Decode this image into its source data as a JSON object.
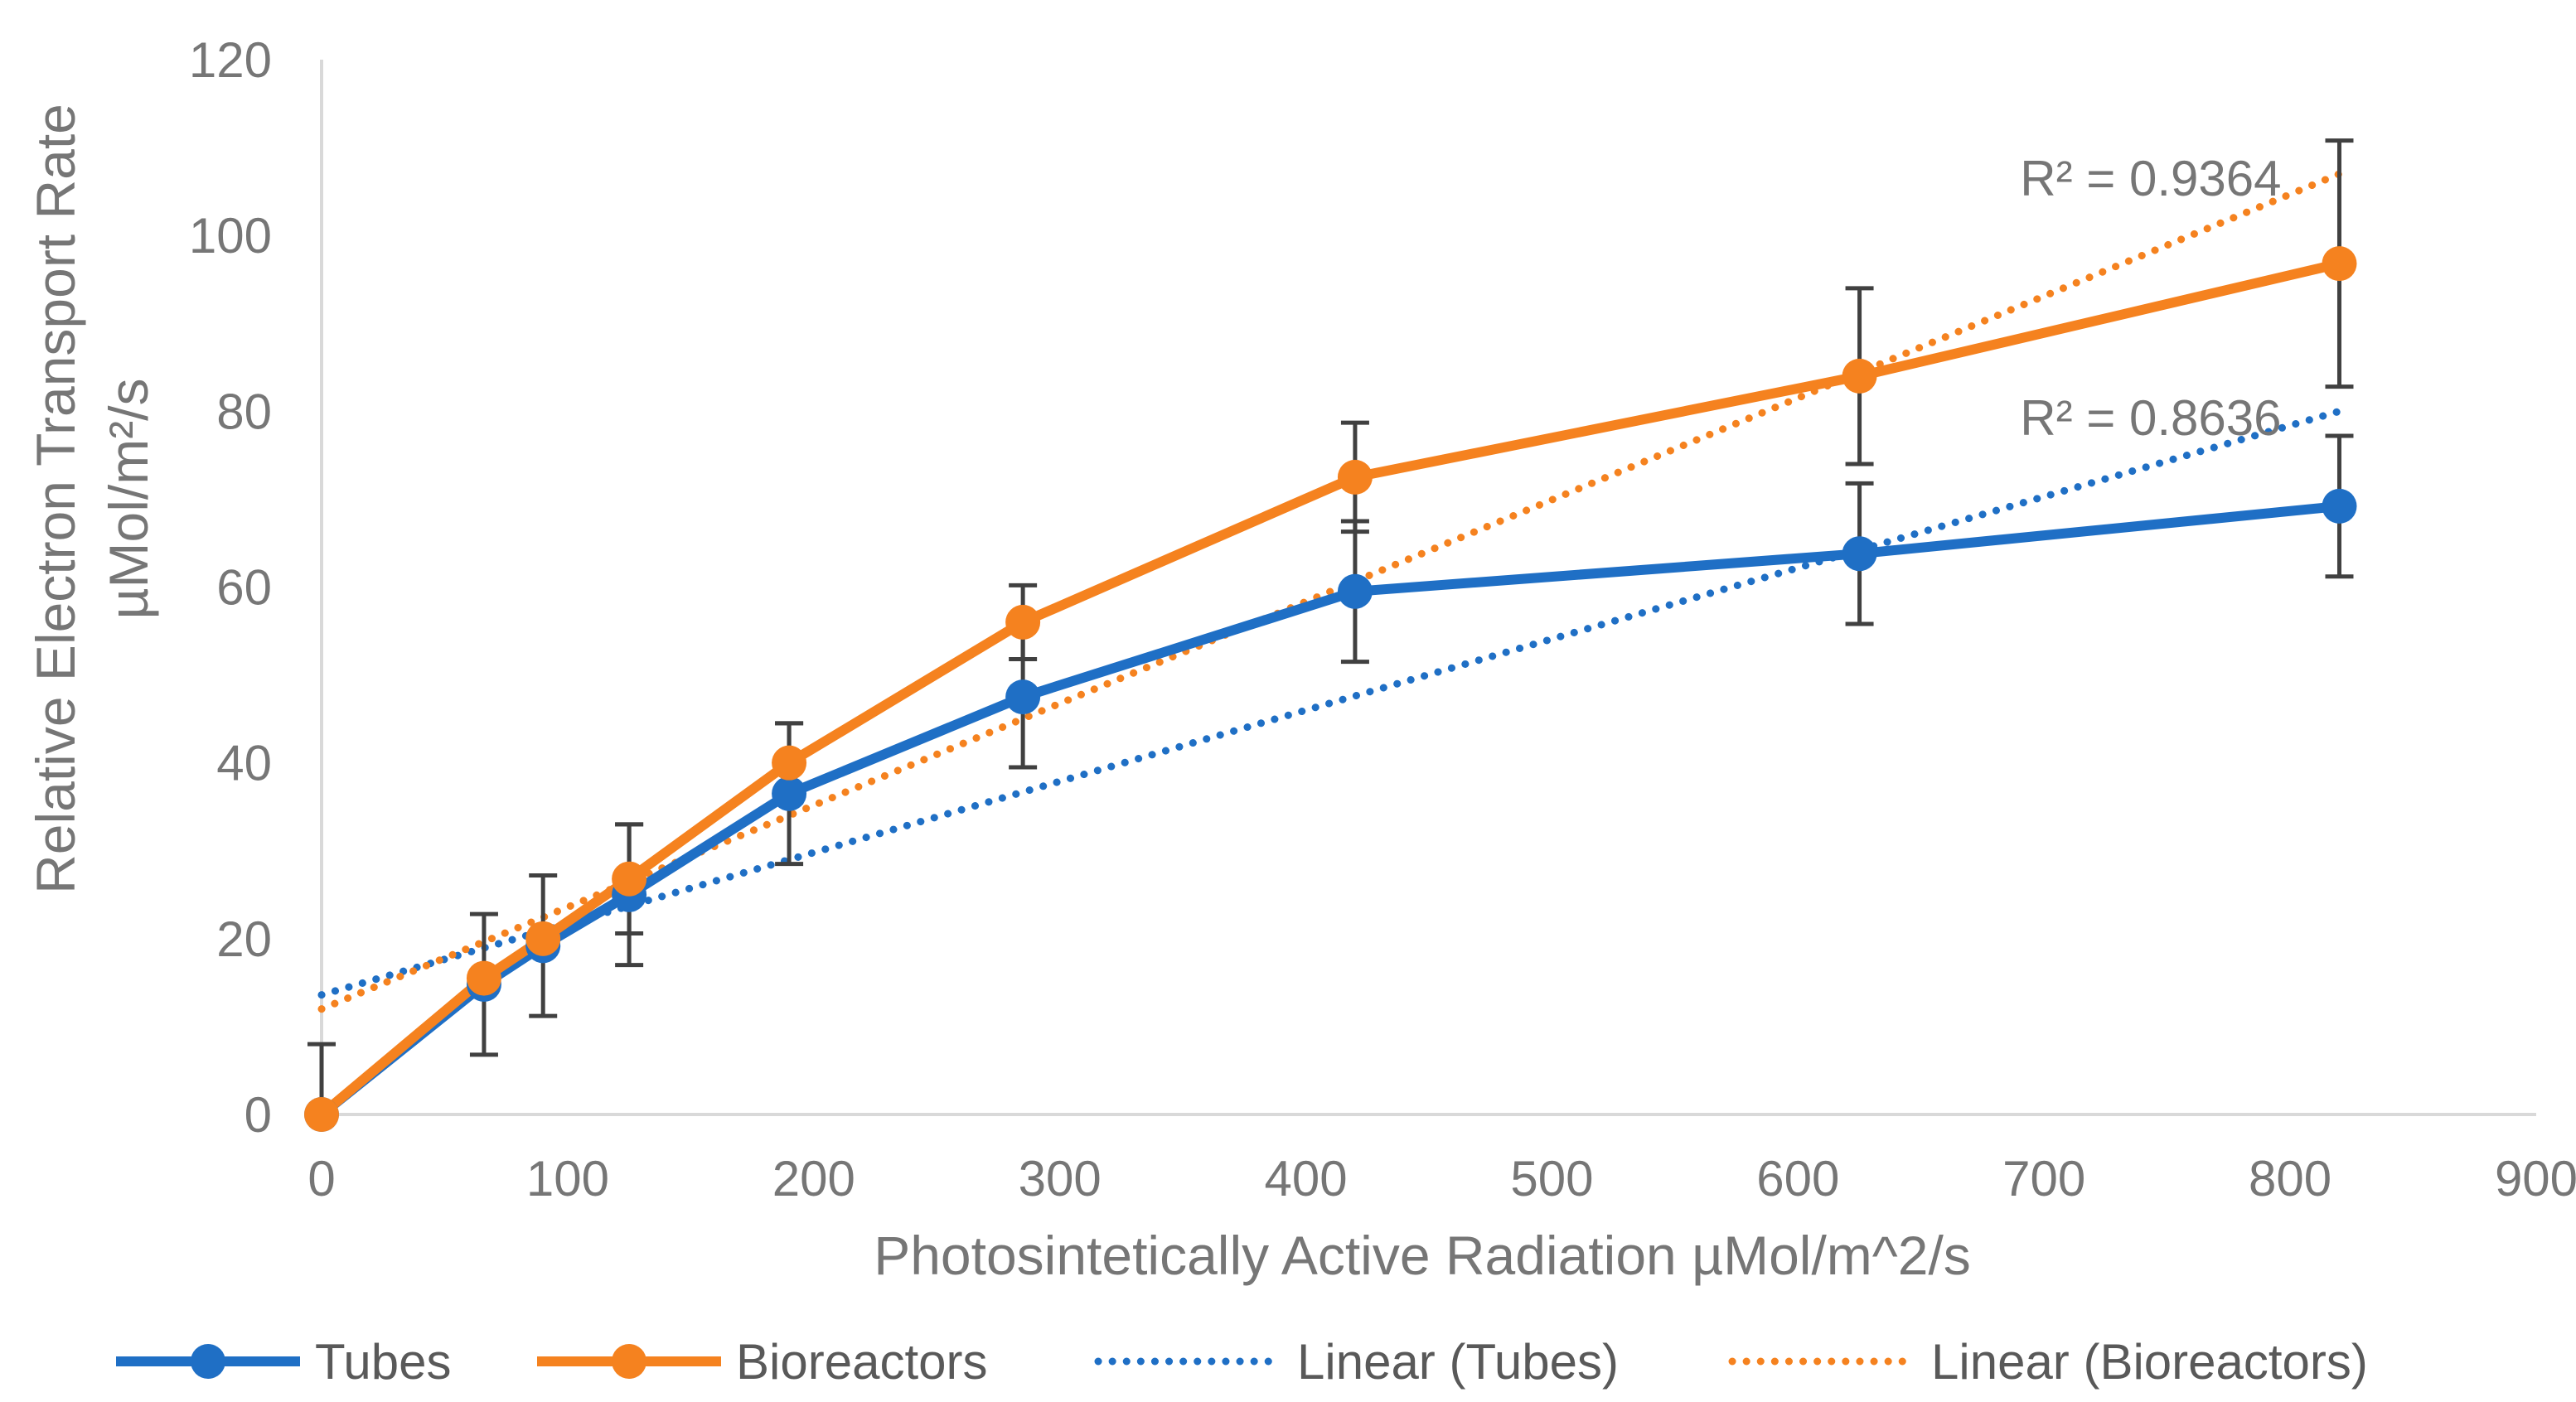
{
  "chart_data": {
    "type": "line",
    "xlabel": "Photosintetically Active Radiation µMol/m^2/s",
    "ylabel_line1": "Relative Electron Transport Rate",
    "ylabel_line2": "µMol/m²/s",
    "xlim": [
      0,
      900
    ],
    "ylim": [
      0,
      120
    ],
    "x_ticks": [
      0,
      100,
      200,
      300,
      400,
      500,
      600,
      700,
      800,
      900
    ],
    "y_ticks": [
      0,
      20,
      40,
      60,
      80,
      100,
      120
    ],
    "grid": false,
    "legend_position": "bottom",
    "series": [
      {
        "name": "Tubes",
        "color": "#1f6fc5",
        "x": [
          0,
          66,
          90,
          125,
          190,
          285,
          420,
          625,
          820
        ],
        "y": [
          0,
          14.8,
          19.2,
          25,
          36.5,
          47.5,
          59.5,
          63.8,
          69.2
        ],
        "error": [
          8,
          8,
          8,
          8,
          8,
          8,
          8,
          8,
          8
        ]
      },
      {
        "name": "Bioreactors",
        "color": "#f5821f",
        "x": [
          0,
          66,
          90,
          125,
          190,
          285,
          420,
          625,
          820
        ],
        "y": [
          0,
          15.5,
          20,
          26.8,
          40,
          56,
          72.5,
          84,
          96.8
        ],
        "error": [
          0,
          0,
          0,
          6.2,
          4.5,
          4.2,
          6.2,
          10,
          14
        ]
      }
    ],
    "trendlines": [
      {
        "name": "Linear (Tubes)",
        "color": "#1f6fc5",
        "x": [
          0,
          820
        ],
        "y": [
          13.6,
          80
        ],
        "r2_label": "R² = 0.8636",
        "label_at": [
          820,
          79.3
        ]
      },
      {
        "name": "Linear (Bioreactors)",
        "color": "#f5821f",
        "x": [
          0,
          820
        ],
        "y": [
          12,
          107
        ],
        "r2_label": "R² = 0.9364",
        "label_at": [
          820,
          106.5
        ]
      }
    ]
  },
  "legend": {
    "items": [
      {
        "label": "Tubes",
        "color": "#1f6fc5",
        "style": "line-marker"
      },
      {
        "label": "Bioreactors",
        "color": "#f5821f",
        "style": "line-marker"
      },
      {
        "label": "Linear (Tubes)",
        "color": "#1f6fc5",
        "style": "dotted"
      },
      {
        "label": "Linear (Bioreactors)",
        "color": "#f5821f",
        "style": "dotted"
      }
    ]
  }
}
